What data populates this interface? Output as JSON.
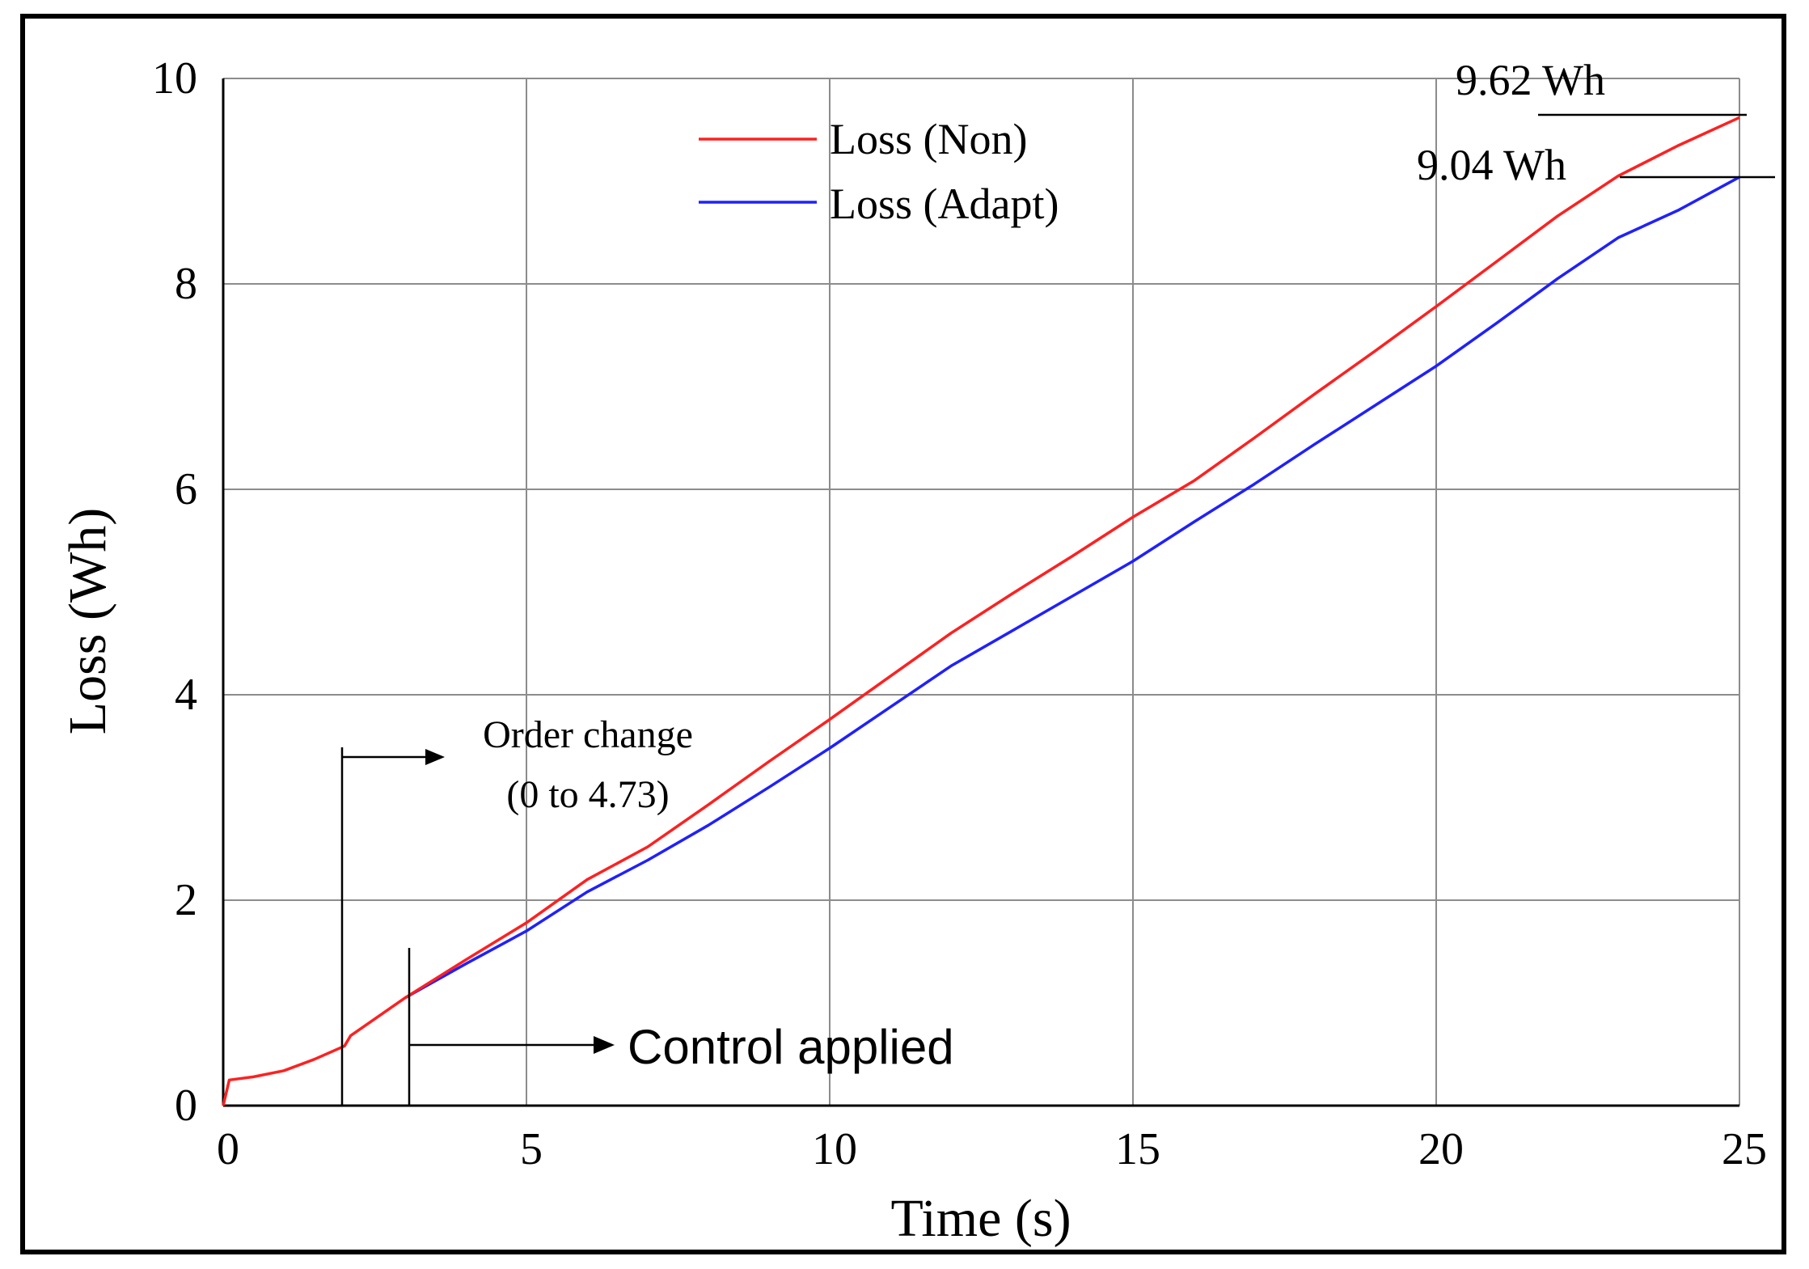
{
  "chart_data": {
    "type": "line",
    "title": "",
    "xlabel": "Time (s)",
    "ylabel": "Loss (Wh)",
    "xlim": [
      0,
      25
    ],
    "ylim": [
      0,
      10
    ],
    "xticks": [
      0,
      5,
      10,
      15,
      20,
      25
    ],
    "yticks": [
      0,
      2,
      4,
      6,
      8,
      10
    ],
    "grid": true,
    "legend_position": "top-center",
    "series": [
      {
        "name": "Loss (Non)",
        "color": "#ff2020",
        "x": [
          0,
          0.1,
          0.5,
          1,
          1.5,
          2,
          2.1,
          3,
          4,
          5,
          6,
          7,
          8,
          9,
          10,
          11,
          12,
          13,
          14,
          15,
          16,
          17,
          18,
          19,
          20,
          21,
          22,
          23,
          24,
          25
        ],
        "y": [
          0,
          0.25,
          0.28,
          0.34,
          0.45,
          0.58,
          0.68,
          1.05,
          1.42,
          1.78,
          2.2,
          2.52,
          2.93,
          3.35,
          3.76,
          4.18,
          4.6,
          4.98,
          5.35,
          5.73,
          6.08,
          6.5,
          6.93,
          7.35,
          7.78,
          8.22,
          8.66,
          9.05,
          9.35,
          9.62
        ]
      },
      {
        "name": "Loss (Adapt)",
        "color": "#2020ff",
        "x": [
          3,
          4,
          5,
          6,
          7,
          8,
          9,
          10,
          11,
          12,
          13,
          14,
          15,
          16,
          17,
          18,
          19,
          20,
          21,
          22,
          23,
          24,
          25
        ],
        "y": [
          1.05,
          1.38,
          1.7,
          2.08,
          2.39,
          2.73,
          3.1,
          3.48,
          3.88,
          4.28,
          4.62,
          4.96,
          5.3,
          5.68,
          6.05,
          6.44,
          6.82,
          7.2,
          7.62,
          8.05,
          8.45,
          8.72,
          9.04
        ]
      }
    ],
    "annotations": {
      "order_change_line1": "Order change",
      "order_change_line2": "(0 to 4.73)",
      "order_change_time": 2,
      "control_applied": "Control applied",
      "control_applied_time": 3.1,
      "end_non": "9.62 Wh",
      "end_adapt": "9.04 Wh"
    }
  }
}
